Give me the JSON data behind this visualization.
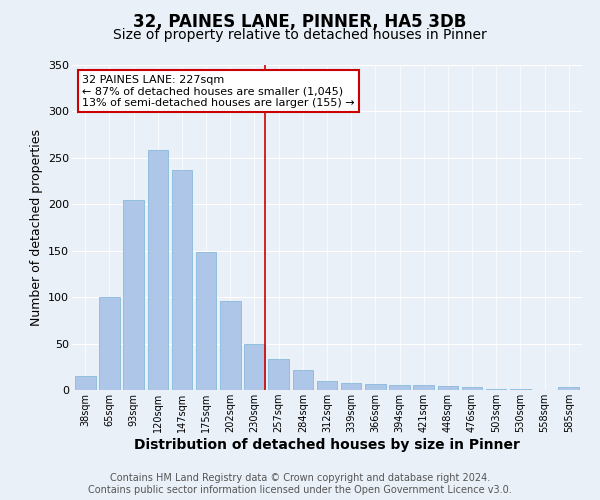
{
  "title": "32, PAINES LANE, PINNER, HA5 3DB",
  "subtitle": "Size of property relative to detached houses in Pinner",
  "xlabel": "Distribution of detached houses by size in Pinner",
  "ylabel": "Number of detached properties",
  "bin_labels": [
    "38sqm",
    "65sqm",
    "93sqm",
    "120sqm",
    "147sqm",
    "175sqm",
    "202sqm",
    "230sqm",
    "257sqm",
    "284sqm",
    "312sqm",
    "339sqm",
    "366sqm",
    "394sqm",
    "421sqm",
    "448sqm",
    "476sqm",
    "503sqm",
    "530sqm",
    "558sqm",
    "585sqm"
  ],
  "bar_heights": [
    15,
    100,
    205,
    258,
    237,
    149,
    96,
    50,
    33,
    22,
    10,
    8,
    7,
    5,
    5,
    4,
    3,
    1,
    1,
    0,
    3
  ],
  "bar_color": "#aec6e8",
  "bar_edgecolor": "#7ab4d8",
  "bg_color": "#eaf0f8",
  "fig_bg_color": "#eaf0f8",
  "grid_color": "#ffffff",
  "vline_color": "#cc0000",
  "vline_bar_index": 7,
  "annotation_text": "32 PAINES LANE: 227sqm\n← 87% of detached houses are smaller (1,045)\n13% of semi-detached houses are larger (155) →",
  "annotation_box_facecolor": "#ffffff",
  "annotation_box_edgecolor": "#cc0000",
  "ylim": [
    0,
    350
  ],
  "yticks": [
    0,
    50,
    100,
    150,
    200,
    250,
    300,
    350
  ],
  "footer_text": "Contains HM Land Registry data © Crown copyright and database right 2024.\nContains public sector information licensed under the Open Government Licence v3.0.",
  "title_fontsize": 12,
  "subtitle_fontsize": 10,
  "xlabel_fontsize": 10,
  "ylabel_fontsize": 9,
  "tick_fontsize": 7,
  "footer_fontsize": 7,
  "annot_fontsize": 8
}
